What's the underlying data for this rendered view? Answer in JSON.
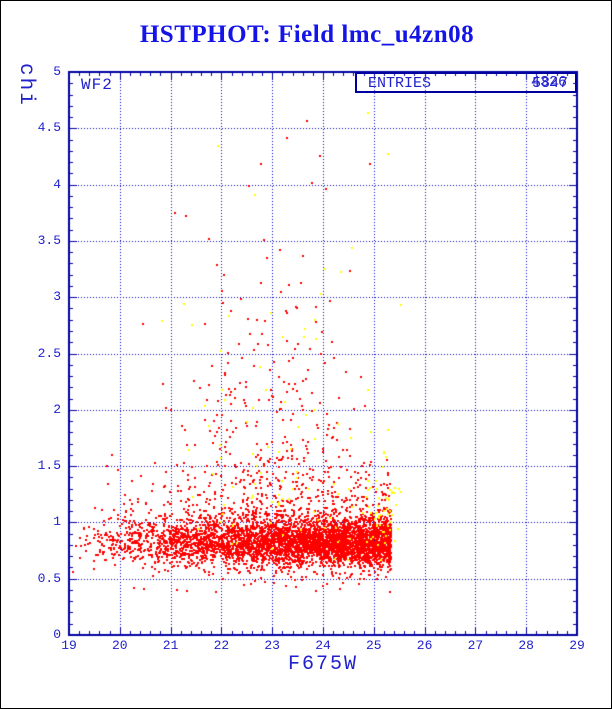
{
  "title": "HSTPHOT: Field lmc_u4zn08",
  "detector_label": "WF2",
  "stats_box": {
    "label": "ENTRIES",
    "values": [
      "5847",
      "4326"
    ]
  },
  "colors": {
    "title": "#1414e6",
    "frame": "#0000a0",
    "grid": "#0000bb",
    "tick_text": "#2222cc",
    "label_text": "#2222cc",
    "red_series": "#ff0000",
    "yellow_series": "#ffff00"
  },
  "chart_data": {
    "type": "scatter",
    "title": "HSTPHOT: Field lmc_u4zn08",
    "xlabel": "F675W",
    "ylabel": "chi",
    "xlim": [
      19,
      29
    ],
    "ylim": [
      0,
      5
    ],
    "x_tick_labels": [
      "19",
      "20",
      "21",
      "22",
      "23",
      "24",
      "25",
      "26",
      "27",
      "28",
      "29"
    ],
    "y_tick_labels": [
      "0",
      "0.5",
      "1",
      "1.5",
      "2",
      "2.5",
      "3",
      "3.5",
      "4",
      "4.5",
      "5"
    ],
    "x_grid": [
      20,
      21,
      22,
      23,
      24,
      25,
      26,
      27,
      28
    ],
    "y_grid": [
      0.5,
      1,
      1.5,
      2,
      2.5,
      3,
      3.5,
      4,
      4.5
    ],
    "grid_style": "dotted",
    "legend": "none",
    "seed": 42,
    "marker_px": 2,
    "series": [
      {
        "name": "red-points",
        "color": "#ff0000",
        "approx_n": 5180,
        "clusters": [
          {
            "name": "main-band",
            "n": 3800,
            "mag": {
              "dist": "power",
              "min": 19.0,
              "max": 25.35,
              "exp": 0.45
            },
            "chi": {
              "dist": "gauss",
              "mean": 0.82,
              "sd": 0.1,
              "min": 0.45,
              "max": 1.15
            }
          },
          {
            "name": "band-halo",
            "n": 1100,
            "mag": {
              "dist": "power",
              "min": 19.0,
              "max": 25.35,
              "exp": 0.5
            },
            "chi": {
              "dist": "gauss",
              "mean": 0.93,
              "sd": 0.22,
              "min": 0.38,
              "max": 1.75
            }
          },
          {
            "name": "upper-tail",
            "n": 280,
            "mag": {
              "dist": "gauss",
              "mean": 23.0,
              "sd": 1.05,
              "min": 19.3,
              "max": 25.3
            },
            "chi": {
              "dist": "exp",
              "base": 1.3,
              "scale": 0.75,
              "max": 5.0
            }
          }
        ]
      },
      {
        "name": "yellow-points",
        "color": "#ffff00",
        "approx_n": 145,
        "clusters": [
          {
            "name": "upper-scatter",
            "n": 65,
            "mag": {
              "dist": "gauss",
              "mean": 23.1,
              "sd": 1.2,
              "min": 20.4,
              "max": 25.55
            },
            "chi": {
              "dist": "exp",
              "base": 1.15,
              "scale": 1.05,
              "max": 4.9
            }
          },
          {
            "name": "faint-cluster",
            "n": 50,
            "mag": {
              "dist": "gauss",
              "mean": 25.15,
              "sd": 0.22,
              "min": 24.3,
              "max": 25.55
            },
            "chi": {
              "dist": "gauss",
              "mean": 1.15,
              "sd": 0.2,
              "min": 0.8,
              "max": 1.75
            }
          },
          {
            "name": "in-band",
            "n": 30,
            "mag": {
              "dist": "uniform",
              "min": 21.5,
              "max": 25.3
            },
            "chi": {
              "dist": "gauss",
              "mean": 0.95,
              "sd": 0.15,
              "min": 0.6,
              "max": 1.3
            }
          }
        ]
      }
    ]
  }
}
